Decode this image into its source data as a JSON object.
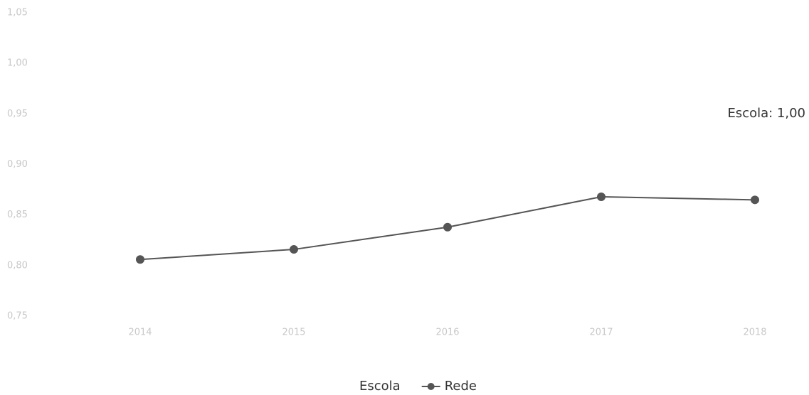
{
  "chart_data": {
    "type": "line",
    "categories": [
      "2014",
      "2015",
      "2016",
      "2017",
      "2018"
    ],
    "series": [
      {
        "name": "Escola",
        "color": "#4a4a4a",
        "values": [
          null,
          null,
          null,
          null,
          null
        ]
      },
      {
        "name": "Rede",
        "color": "#555555",
        "values": [
          0.806,
          0.816,
          0.838,
          0.868,
          0.865
        ]
      }
    ],
    "ylim": [
      0.75,
      1.05
    ],
    "yticks": [
      {
        "value": 1.05,
        "label": "1,05"
      },
      {
        "value": 1.0,
        "label": "1,00"
      },
      {
        "value": 0.95,
        "label": "0,95"
      },
      {
        "value": 0.9,
        "label": "0,90"
      },
      {
        "value": 0.85,
        "label": "0,85"
      },
      {
        "value": 0.8,
        "label": "0,80"
      },
      {
        "value": 0.75,
        "label": "0,75"
      }
    ],
    "annotation": "Escola: 1,00",
    "grid": false
  }
}
